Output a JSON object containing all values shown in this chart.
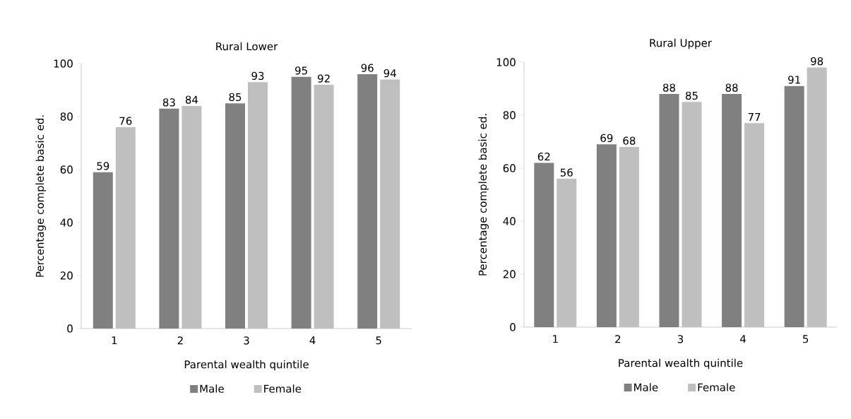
{
  "chart_data": [
    {
      "type": "bar",
      "title": "Rural Lower",
      "xlabel": "Parental wealth quintile",
      "ylabel": "Percentage complete basic ed.",
      "categories": [
        "1",
        "2",
        "3",
        "4",
        "5"
      ],
      "series": [
        {
          "name": "Male",
          "color": "#808080",
          "values": [
            59,
            83,
            85,
            95,
            96
          ]
        },
        {
          "name": "Female",
          "color": "#bfbfbf",
          "values": [
            76,
            84,
            93,
            92,
            94
          ]
        }
      ],
      "ylim": [
        0,
        100
      ],
      "yticks": [
        0,
        20,
        40,
        60,
        80,
        100
      ],
      "data_labels": true,
      "legend": "bottom",
      "grid": false
    },
    {
      "type": "bar",
      "title": "Rural Upper",
      "xlabel": "Parental wealth quintile",
      "ylabel": "Percentage complete basic ed.",
      "categories": [
        "1",
        "2",
        "3",
        "4",
        "5"
      ],
      "series": [
        {
          "name": "Male",
          "color": "#808080",
          "values": [
            62,
            69,
            88,
            88,
            91
          ]
        },
        {
          "name": "Female",
          "color": "#bfbfbf",
          "values": [
            56,
            68,
            85,
            77,
            98
          ]
        }
      ],
      "ylim": [
        0,
        100
      ],
      "yticks": [
        0,
        20,
        40,
        60,
        80,
        100
      ],
      "data_labels": true,
      "legend": "bottom",
      "grid": false
    }
  ]
}
